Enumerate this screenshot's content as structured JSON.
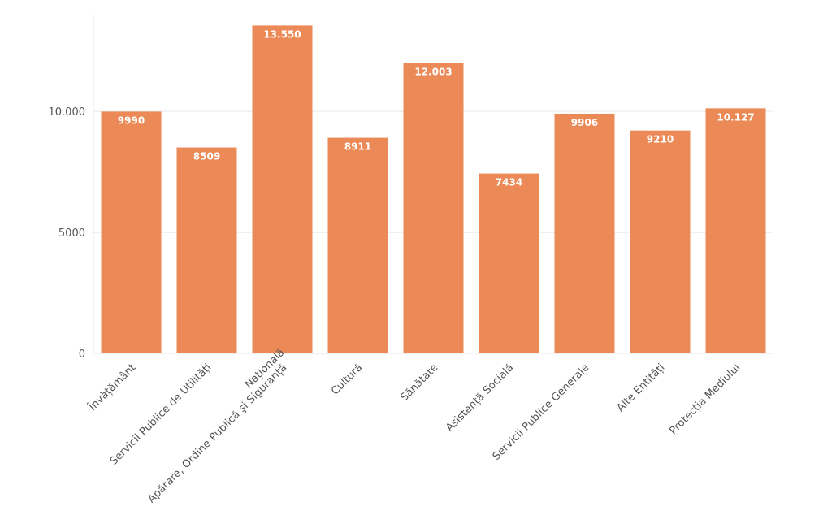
{
  "chart_data": {
    "type": "bar",
    "categories": [
      "Învățământ",
      "Servicii Publice de Utilități",
      "Apărare, Ordine Publică și Siguranță Națională",
      "Cultură",
      "Sănătate",
      "Asistență Socială",
      "Servicii Publice Generale",
      "Alte Entități",
      "Protecția Mediului"
    ],
    "values": [
      9990,
      8509,
      13550,
      8911,
      12003,
      7434,
      9906,
      9210,
      10127
    ],
    "value_labels": [
      "9990",
      "8509",
      "13.550",
      "8911",
      "12.003",
      "7434",
      "9906",
      "9210",
      "10.127"
    ],
    "color": "#eb8a56",
    "ylim": [
      0,
      14000
    ],
    "yticks": [
      0,
      5000,
      {
        "value": 10000,
        "label": "10.000"
      }
    ],
    "grid": true
  }
}
